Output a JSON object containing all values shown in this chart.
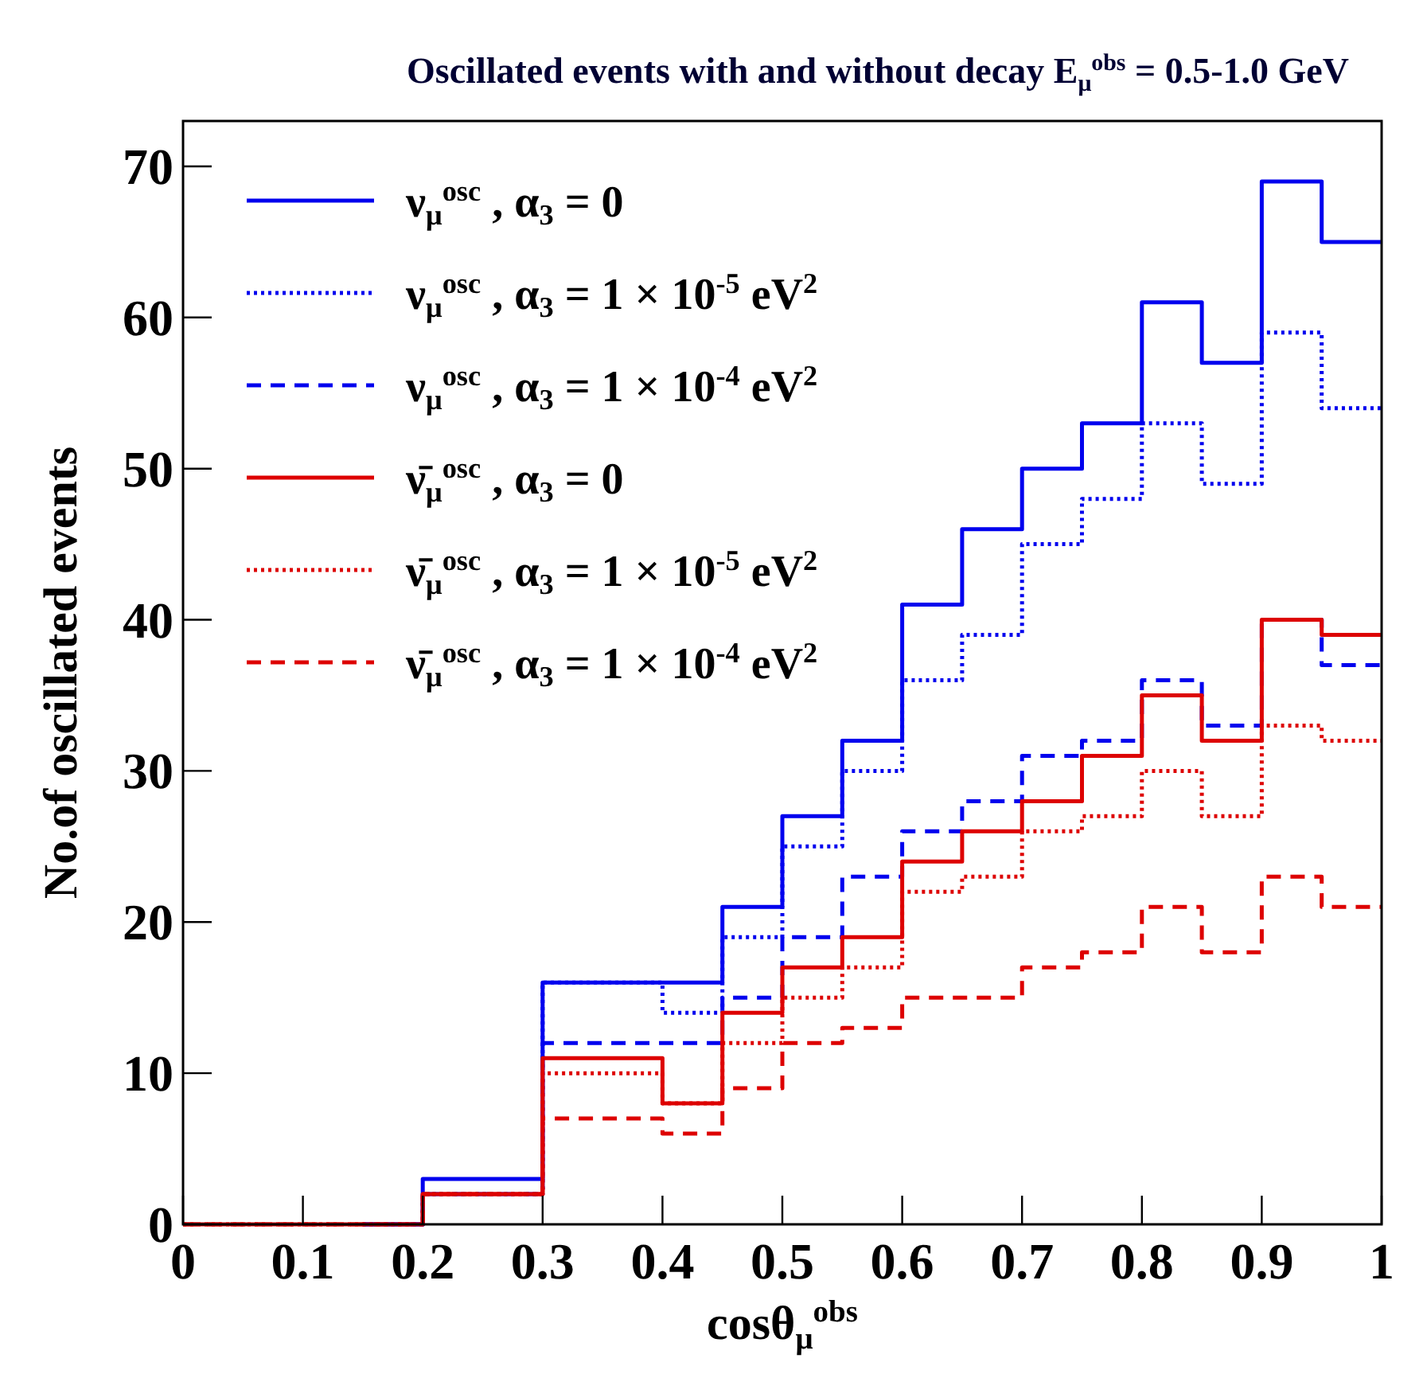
{
  "chart_data": {
    "type": "step",
    "title": "Oscillated events with and without decay E$_{μ}$$^{obs}$ = 0.5-1.0 GeV",
    "xlabel": "cosθ$_{μ}$$^{obs}$",
    "ylabel": "No.of oscillated events",
    "x": [
      0,
      0.05,
      0.1,
      0.15,
      0.2,
      0.25,
      0.3,
      0.35,
      0.4,
      0.45,
      0.5,
      0.55,
      0.6,
      0.65,
      0.7,
      0.75,
      0.8,
      0.85,
      0.9,
      0.95,
      1.0
    ],
    "series": [
      {
        "name": "ν$_{μ}$$^{osc}$ , α$_{3}$ = 0",
        "color": "#0000ee",
        "line_style": "solid",
        "values": [
          null,
          null,
          null,
          0,
          3,
          3,
          16,
          16,
          16,
          21,
          27,
          32,
          41,
          46,
          50,
          53,
          61,
          57,
          69,
          65,
          65
        ]
      },
      {
        "name": "ν$_{μ}$$^{osc}$ , α$_{3}$ = 1 × 10$^{-5}$ eV$^{2}$",
        "color": "#0000ee",
        "line_style": "dotted",
        "values": [
          null,
          null,
          null,
          0,
          2,
          2,
          16,
          16,
          14,
          19,
          25,
          30,
          36,
          39,
          45,
          48,
          53,
          49,
          59,
          54,
          54
        ]
      },
      {
        "name": "ν$_{μ}$$^{osc}$ , α$_{3}$ = 1 × 10$^{-4}$ eV$^{2}$",
        "color": "#0000ee",
        "line_style": "dashed",
        "values": [
          null,
          null,
          null,
          0,
          2,
          2,
          12,
          12,
          12,
          15,
          19,
          23,
          26,
          28,
          31,
          32,
          36,
          33,
          40,
          37,
          37
        ]
      },
      {
        "name": "ν̄$_{μ}$$^{osc}$ , α$_{3}$ = 0",
        "color": "#dd0000",
        "line_style": "solid",
        "values": [
          0,
          0,
          0,
          0,
          2,
          2,
          11,
          11,
          8,
          14,
          17,
          19,
          24,
          26,
          28,
          31,
          35,
          32,
          40,
          39,
          39
        ]
      },
      {
        "name": "ν̄$_{μ}$$^{osc}$ , α$_{3}$ = 1 × 10$^{-5}$ eV$^{2}$",
        "color": "#dd0000",
        "line_style": "dotted",
        "values": [
          0,
          0,
          0,
          0,
          2,
          2,
          10,
          10,
          8,
          12,
          15,
          17,
          22,
          23,
          26,
          27,
          30,
          27,
          33,
          32,
          32
        ]
      },
      {
        "name": "ν̄$_{μ}$$^{osc}$ , α$_{3}$ = 1 × 10$^{-4}$ eV$^{2}$",
        "color": "#dd0000",
        "line_style": "dashed",
        "values": [
          0,
          0,
          0,
          0,
          2,
          2,
          7,
          7,
          6,
          9,
          12,
          13,
          15,
          15,
          17,
          18,
          21,
          18,
          23,
          21,
          21
        ]
      }
    ],
    "xlim": [
      0,
      1
    ],
    "xticks": [
      0,
      {
        "value": 0.1,
        "label": "0.1"
      },
      {
        "value": 0.2,
        "label": "0.2"
      },
      {
        "value": 0.3,
        "label": "0.3"
      },
      {
        "value": 0.4,
        "label": "0.4"
      },
      {
        "value": 0.5,
        "label": "0.5"
      },
      {
        "value": 0.6,
        "label": "0.6"
      },
      {
        "value": 0.7,
        "label": "0.7"
      },
      {
        "value": 0.8,
        "label": "0.8"
      },
      {
        "value": 0.9,
        "label": "0.9"
      },
      1
    ],
    "ylim": [
      0,
      73
    ],
    "yticks": [
      0,
      10,
      20,
      30,
      40,
      50,
      60,
      70
    ],
    "legend": "top left",
    "grid": false
  }
}
